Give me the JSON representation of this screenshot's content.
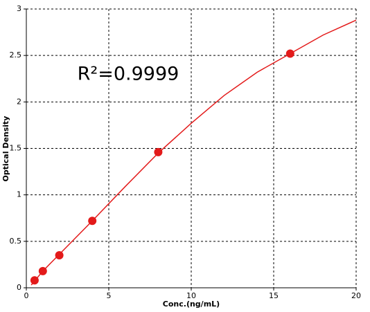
{
  "chart_data": {
    "type": "scatter",
    "annotation": "R²=0.9999",
    "xlabel": "Conc.(ng/mL)",
    "ylabel": "Optical Density",
    "xlim": [
      0,
      20
    ],
    "xticks": [
      0,
      5,
      10,
      15,
      20
    ],
    "ylim": [
      0,
      3
    ],
    "yticks": [
      0,
      0.5,
      1,
      1.5,
      2,
      2.5,
      3
    ],
    "grid": true,
    "series": [
      {
        "color": "#e31a1a",
        "mode": "markers",
        "x": [
          0.5,
          1,
          2,
          4,
          8,
          16
        ],
        "values": [
          0.08,
          0.18,
          0.35,
          0.72,
          1.46,
          2.52
        ]
      },
      {
        "color": "#e31a1a",
        "mode": "line",
        "x": [
          0.3,
          1,
          2,
          4,
          6,
          8,
          10,
          12,
          14,
          16,
          18,
          20
        ],
        "values": [
          0.03,
          0.18,
          0.36,
          0.72,
          1.09,
          1.45,
          1.77,
          2.07,
          2.32,
          2.52,
          2.72,
          2.88
        ]
      }
    ]
  }
}
